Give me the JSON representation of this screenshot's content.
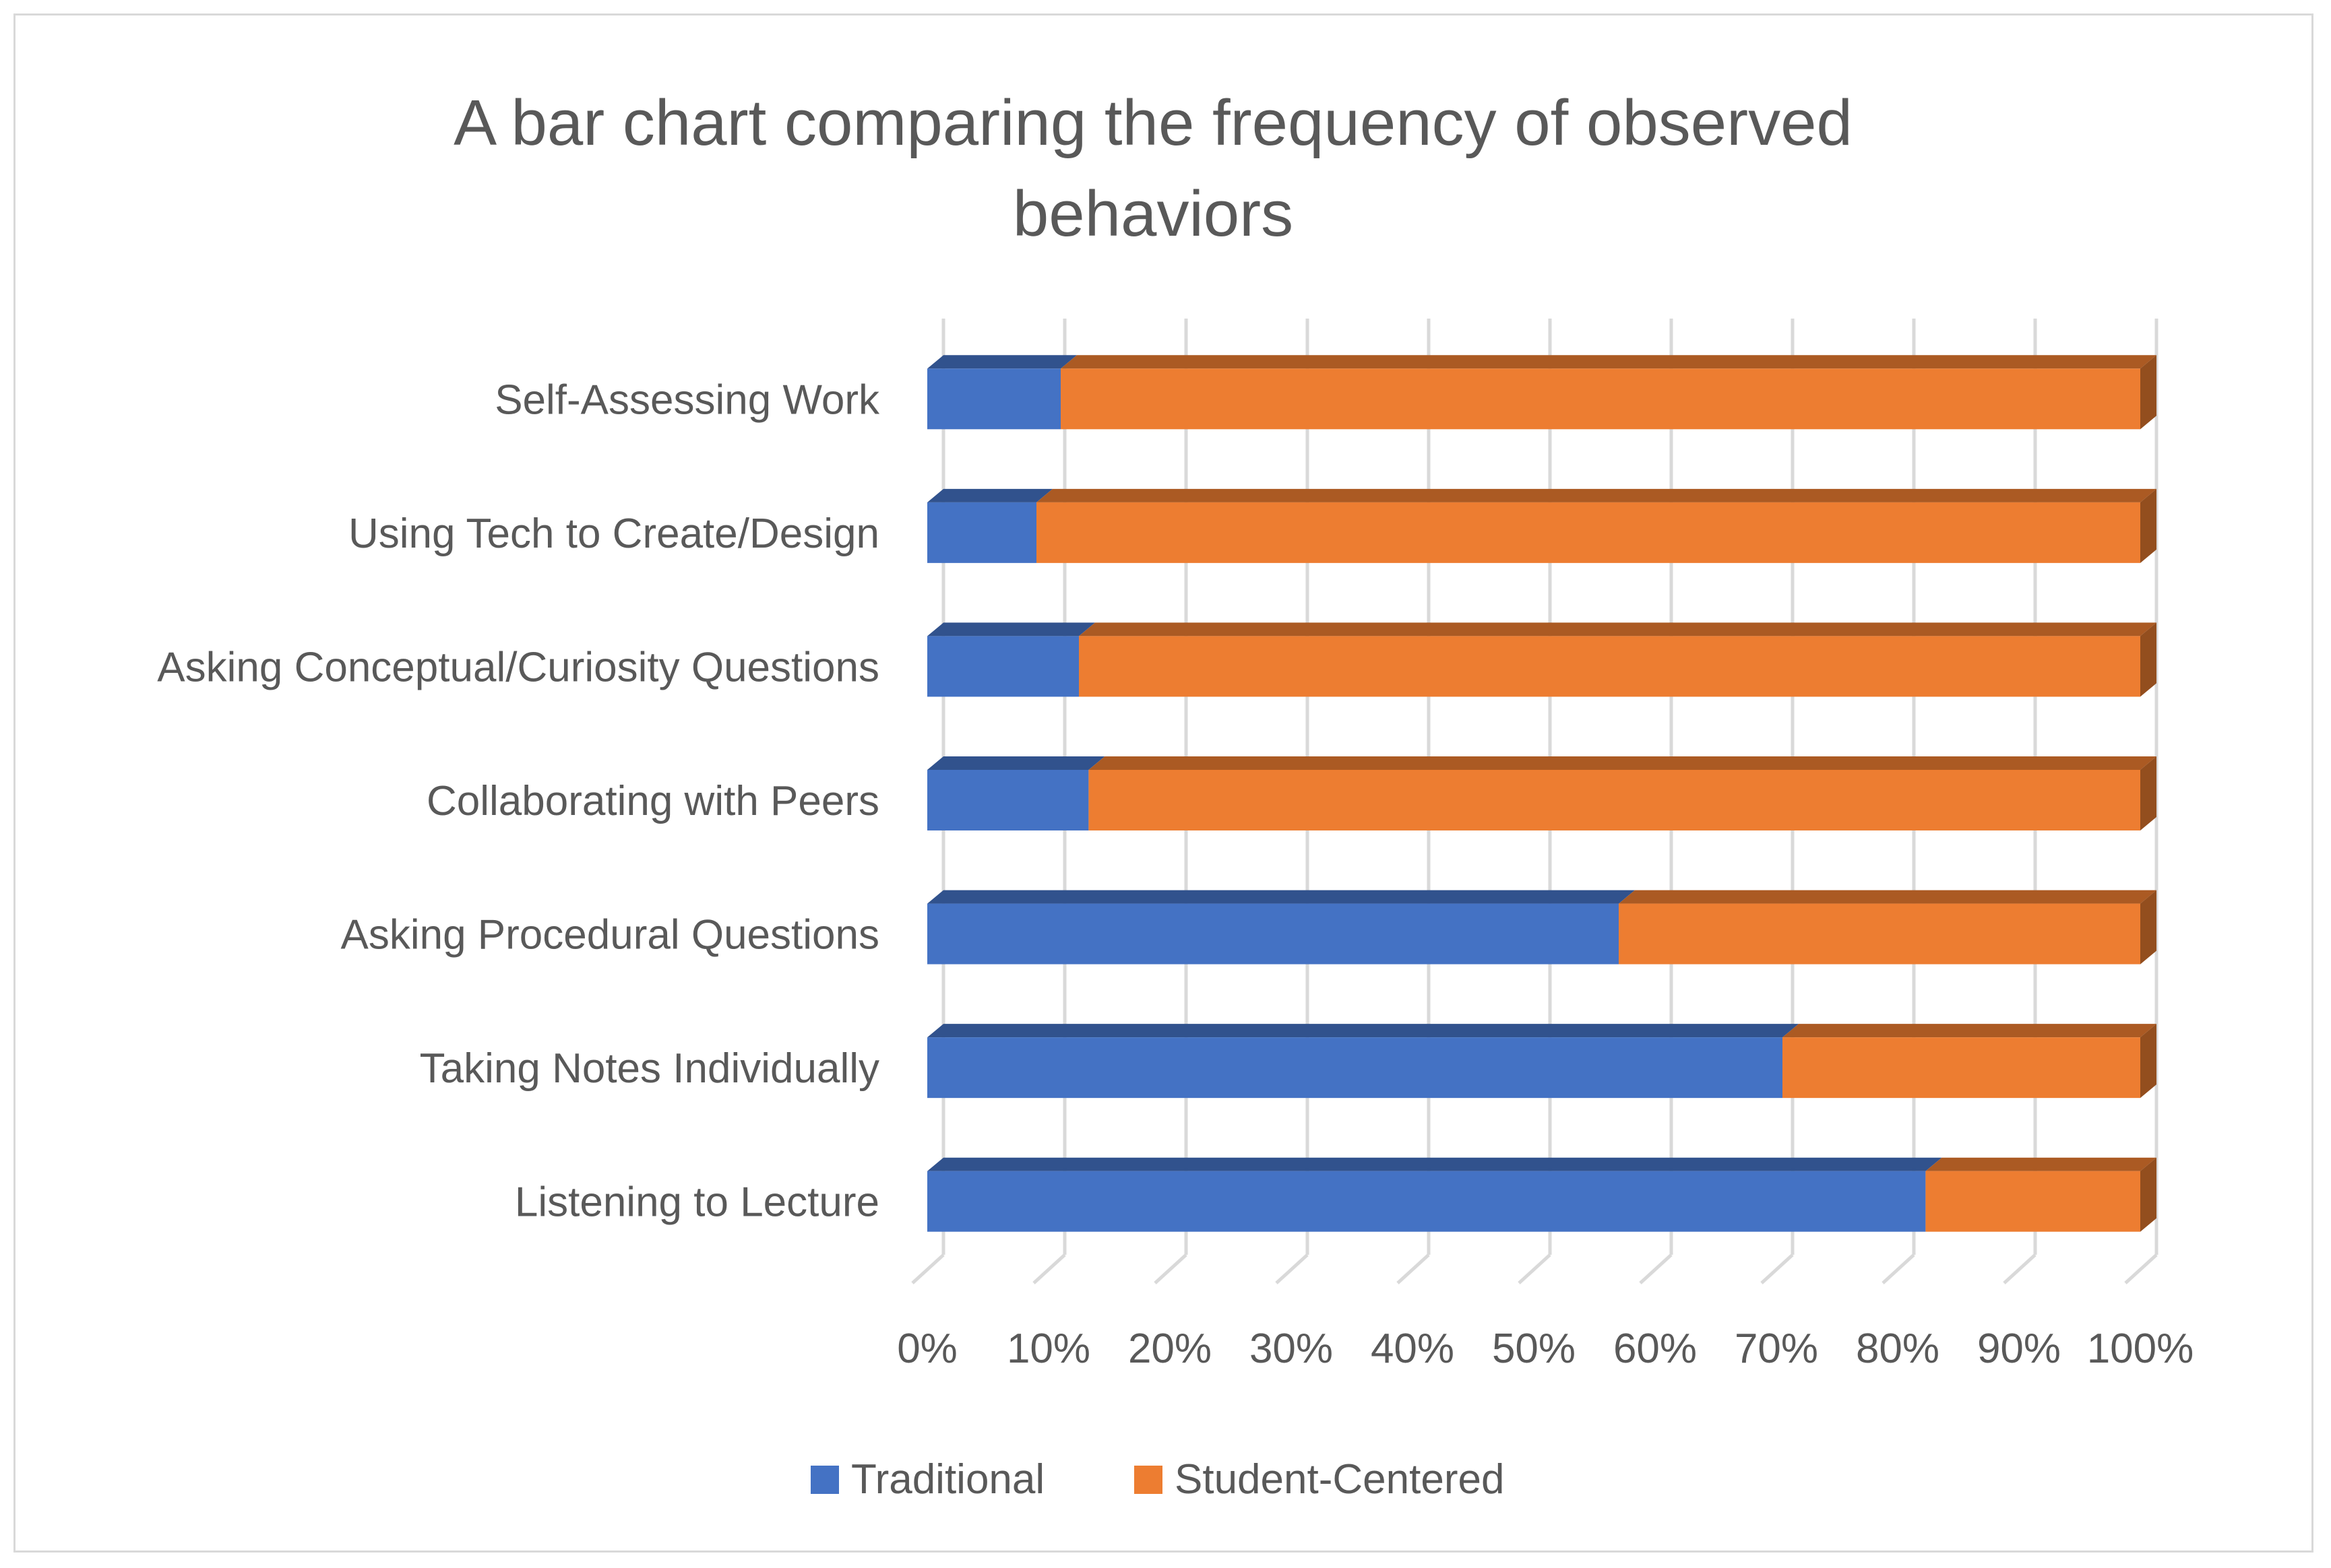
{
  "chart_data": {
    "type": "bar",
    "orientation": "horizontal",
    "stacked": "percent",
    "style": "3d",
    "title_lines": [
      "A bar chart comparing the frequency of observed",
      "behaviors"
    ],
    "categories": [
      "Self-Assessing Work",
      "Using Tech to Create/Design",
      "Asking Conceptual/Curiosity Questions",
      "Collaborating with Peers",
      "Asking Procedural Questions",
      "Taking Notes Individually",
      "Listening to Lecture"
    ],
    "series": [
      {
        "name": "Traditional",
        "color": "#4472c4",
        "values": [
          11,
          9,
          12.5,
          13.3,
          57,
          70.5,
          82.3
        ]
      },
      {
        "name": "Student-Centered",
        "color": "#ed7d31",
        "values": [
          89,
          91,
          87.5,
          86.7,
          43,
          29.5,
          17.7
        ]
      }
    ],
    "x_ticks": [
      "0%",
      "10%",
      "20%",
      "30%",
      "40%",
      "50%",
      "60%",
      "70%",
      "80%",
      "90%",
      "100%"
    ],
    "xlim": [
      0,
      100
    ],
    "grid": true,
    "legend_position": "bottom"
  }
}
